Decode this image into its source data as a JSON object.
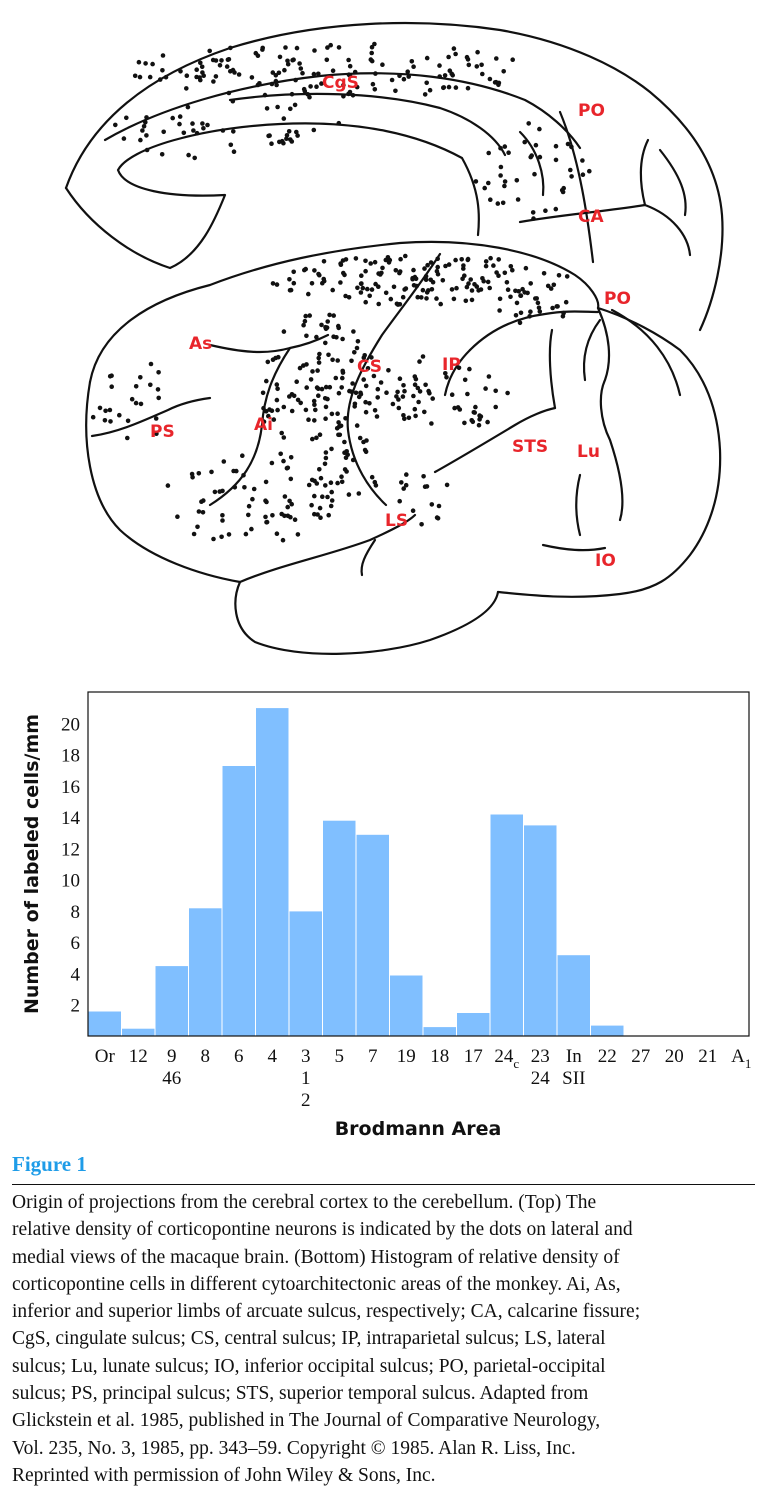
{
  "brain_labels": {
    "cgs": "CgS",
    "po_top": "PO",
    "ca": "CA",
    "po_bottom": "PO",
    "as": "As",
    "cs": "CS",
    "ip": "IP",
    "ps": "PS",
    "ai": "Ai",
    "sts": "STS",
    "lu": "Lu",
    "ls": "LS",
    "io": "IO"
  },
  "chart_data": {
    "type": "bar",
    "categories": [
      "Or",
      "12",
      "9 46",
      "8",
      "6",
      "4",
      "3 1 2",
      "5",
      "7",
      "19",
      "18",
      "17",
      "24c",
      "23 24",
      "In SII",
      "22",
      "27",
      "20",
      "21",
      "A1"
    ],
    "tick_lines": [
      [
        "Or"
      ],
      [
        "12"
      ],
      [
        "9",
        "46"
      ],
      [
        "8"
      ],
      [
        "6"
      ],
      [
        "4"
      ],
      [
        "3",
        "1",
        "2"
      ],
      [
        "5"
      ],
      [
        "7"
      ],
      [
        "19"
      ],
      [
        "18"
      ],
      [
        "17"
      ],
      [
        "24c"
      ],
      [
        "23",
        "24"
      ],
      [
        "In",
        "SII"
      ],
      [
        "22"
      ],
      [
        "27"
      ],
      [
        "20"
      ],
      [
        "21"
      ],
      [
        "A1"
      ]
    ],
    "values": [
      1.6,
      0.5,
      4.5,
      8.2,
      17.3,
      21.0,
      8.0,
      13.8,
      12.9,
      3.9,
      0.6,
      1.5,
      14.2,
      13.5,
      5.2,
      0.7,
      0,
      0,
      0,
      0
    ],
    "yticks": [
      2,
      4,
      6,
      8,
      10,
      12,
      14,
      16,
      18,
      20
    ],
    "ylim": [
      0,
      22
    ],
    "xlabel": "Brodmann Area",
    "ylabel": "Number of labeled cells/mm",
    "bar_color": "#80bfff"
  },
  "caption": {
    "figure_label": "Figure 1",
    "lines": [
      "Origin of projections from the cerebral cortex to the cerebellum. (Top) The",
      "relative density of corticopontine neurons is indicated by the dots on lateral and",
      "medial views of the macaque brain. (Bottom) Histogram of relative density of",
      "corticopontine cells in different cytoarchitectonic areas of the monkey. Ai, As,",
      "inferior and superior limbs of arcuate sulcus, respectively; CA, calcarine fissure;",
      "CgS, cingulate sulcus; CS, central sulcus; IP, intraparietal sulcus; LS, lateral",
      "sulcus; Lu, lunate sulcus; IO, inferior occipital sulcus; PO, parietal-occipital",
      "sulcus; PS, principal sulcus; STS, superior temporal sulcus. Adapted from",
      "Glickstein et al. 1985, published in The Journal of Comparative Neurology,",
      "Vol. 235, No. 3, 1985, pp. 343–59. Copyright © 1985. Alan R. Liss, Inc.",
      "Reprinted with permission of John Wiley & Sons, Inc."
    ]
  }
}
